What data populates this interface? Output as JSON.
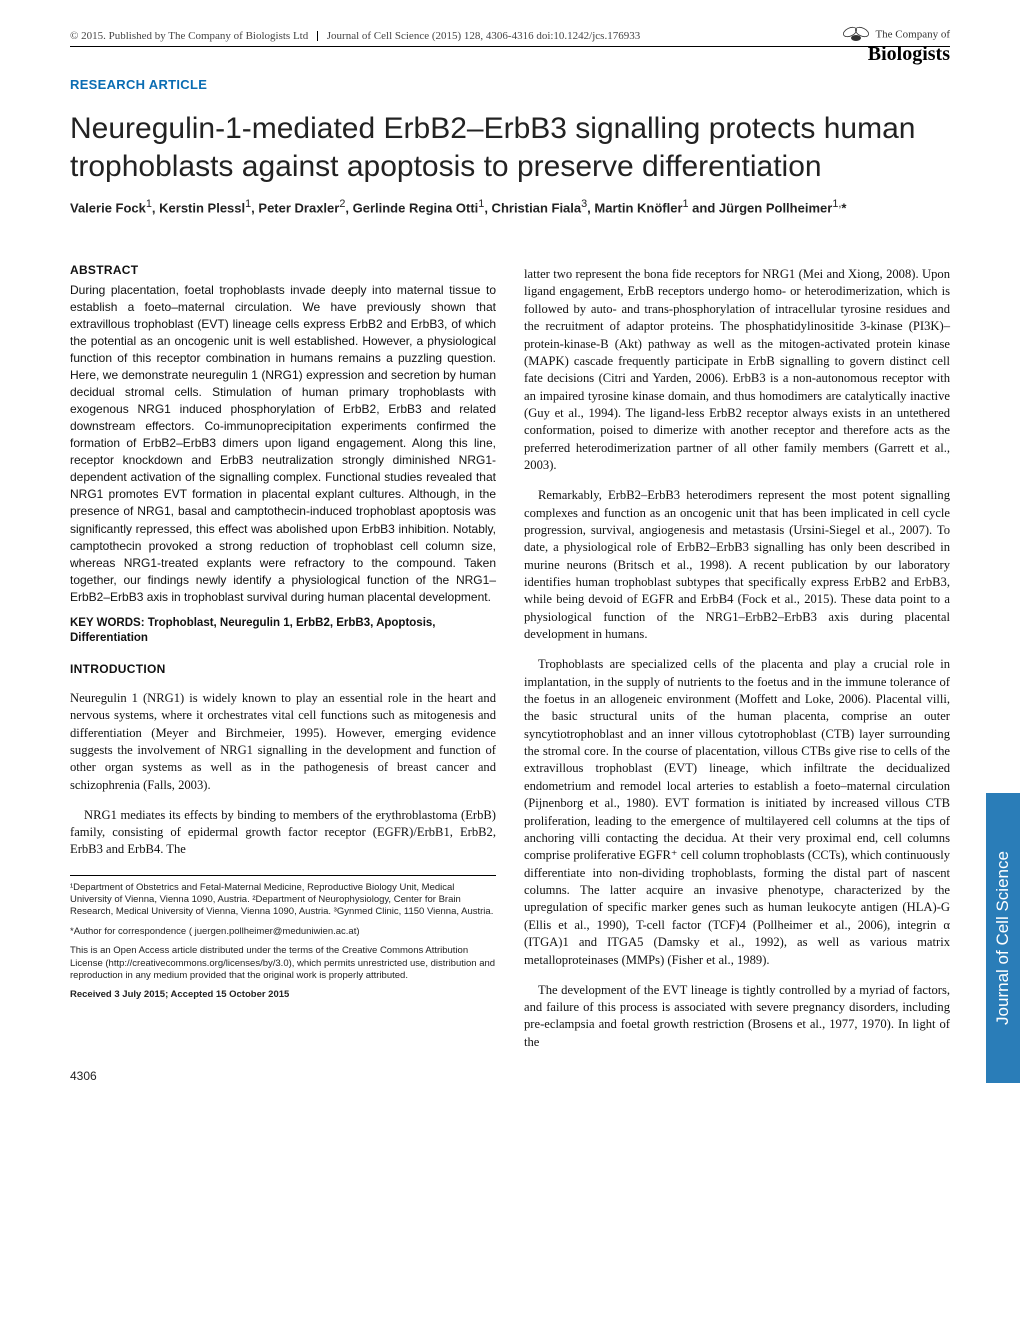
{
  "header": {
    "copyright": "© 2015. Published by The Company of Biologists Ltd",
    "citation": "Journal of Cell Science (2015) 128, 4306-4316 doi:10.1242/jcs.176933"
  },
  "logo": {
    "small": "The Company of",
    "main": "Biologists",
    "accent_color": "#2a7db8"
  },
  "article_type": "RESEARCH ARTICLE",
  "title": "Neuregulin-1-mediated ErbB2–ErbB3 signalling protects human trophoblasts against apoptosis to preserve differentiation",
  "authors_html": "Valerie Fock<sup>1</sup>, Kerstin Plessl<sup>1</sup>, Peter Draxler<sup>2</sup>, Gerlinde Regina Otti<sup>1</sup>, Christian Fiala<sup>3</sup>, Martin Knöfler<sup>1</sup> and Jürgen Pollheimer<sup>1,</sup>*",
  "abstract_head": "ABSTRACT",
  "abstract": "During placentation, foetal trophoblasts invade deeply into maternal tissue to establish a foeto–maternal circulation. We have previously shown that extravillous trophoblast (EVT) lineage cells express ErbB2 and ErbB3, of which the potential as an oncogenic unit is well established. However, a physiological function of this receptor combination in humans remains a puzzling question. Here, we demonstrate neuregulin 1 (NRG1) expression and secretion by human decidual stromal cells. Stimulation of human primary trophoblasts with exogenous NRG1 induced phosphorylation of ErbB2, ErbB3 and related downstream effectors. Co-immunoprecipitation experiments confirmed the formation of ErbB2–ErbB3 dimers upon ligand engagement. Along this line, receptor knockdown and ErbB3 neutralization strongly diminished NRG1-dependent activation of the signalling complex. Functional studies revealed that NRG1 promotes EVT formation in placental explant cultures. Although, in the presence of NRG1, basal and camptothecin-induced trophoblast apoptosis was significantly repressed, this effect was abolished upon ErbB3 inhibition. Notably, camptothecin provoked a strong reduction of trophoblast cell column size, whereas NRG1-treated explants were refractory to the compound. Taken together, our findings newly identify a physiological function of the NRG1–ErbB2–ErbB3 axis in trophoblast survival during human placental development.",
  "keywords": "KEY WORDS: Trophoblast, Neuregulin 1, ErbB2, ErbB3, Apoptosis, Differentiation",
  "intro_head": "INTRODUCTION",
  "intro_p1": "Neuregulin 1 (NRG1) is widely known to play an essential role in the heart and nervous systems, where it orchestrates vital cell functions such as mitogenesis and differentiation (Meyer and Birchmeier, 1995). However, emerging evidence suggests the involvement of NRG1 signalling in the development and function of other organ systems as well as in the pathogenesis of breast cancer and schizophrenia (Falls, 2003).",
  "intro_p2": "NRG1 mediates its effects by binding to members of the erythroblastoma (ErbB) family, consisting of epidermal growth factor receptor (EGFR)/ErbB1, ErbB2, ErbB3 and ErbB4. The",
  "right_p1": "latter two represent the bona fide receptors for NRG1 (Mei and Xiong, 2008). Upon ligand engagement, ErbB receptors undergo homo- or heterodimerization, which is followed by auto- and trans-phosphorylation of intracellular tyrosine residues and the recruitment of adaptor proteins. The phosphatidylinositide 3-kinase (PI3K)–protein-kinase-B (Akt) pathway as well as the mitogen-activated protein kinase (MAPK) cascade frequently participate in ErbB signalling to govern distinct cell fate decisions (Citri and Yarden, 2006). ErbB3 is a non-autonomous receptor with an impaired tyrosine kinase domain, and thus homodimers are catalytically inactive (Guy et al., 1994). The ligand-less ErbB2 receptor always exists in an untethered conformation, poised to dimerize with another receptor and therefore acts as the preferred heterodimerization partner of all other family members (Garrett et al., 2003).",
  "right_p2": "Remarkably, ErbB2–ErbB3 heterodimers represent the most potent signalling complexes and function as an oncogenic unit that has been implicated in cell cycle progression, survival, angiogenesis and metastasis (Ursini-Siegel et al., 2007). To date, a physiological role of ErbB2–ErbB3 signalling has only been described in murine neurons (Britsch et al., 1998). A recent publication by our laboratory identifies human trophoblast subtypes that specifically express ErbB2 and ErbB3, while being devoid of EGFR and ErbB4 (Fock et al., 2015). These data point to a physiological function of the NRG1–ErbB2–ErbB3 axis during placental development in humans.",
  "right_p3": "Trophoblasts are specialized cells of the placenta and play a crucial role in implantation, in the supply of nutrients to the foetus and in the immune tolerance of the foetus in an allogeneic environment (Moffett and Loke, 2006). Placental villi, the basic structural units of the human placenta, comprise an outer syncytiotrophoblast and an inner villous cytotrophoblast (CTB) layer surrounding the stromal core. In the course of placentation, villous CTBs give rise to cells of the extravillous trophoblast (EVT) lineage, which infiltrate the decidualized endometrium and remodel local arteries to establish a foeto–maternal circulation (Pijnenborg et al., 1980). EVT formation is initiated by increased villous CTB proliferation, leading to the emergence of multilayered cell columns at the tips of anchoring villi contacting the decidua. At their very proximal end, cell columns comprise proliferative EGFR⁺ cell column trophoblasts (CCTs), which continuously differentiate into non-dividing trophoblasts, forming the distal part of nascent columns. The latter acquire an invasive phenotype, characterized by the upregulation of specific marker genes such as human leukocyte antigen (HLA)-G (Ellis et al., 1990), T-cell factor (TCF)4 (Pollheimer et al., 2006), integrin α (ITGA)1 and ITGA5 (Damsky et al., 1992), as well as various matrix metalloproteinases (MMPs) (Fisher et al., 1989).",
  "right_p4": "The development of the EVT lineage is tightly controlled by a myriad of factors, and failure of this process is associated with severe pregnancy disorders, including pre-eclampsia and foetal growth restriction (Brosens et al., 1977, 1970). In light of the",
  "affiliations": "¹Department of Obstetrics and Fetal-Maternal Medicine, Reproductive Biology Unit, Medical University of Vienna, Vienna 1090, Austria. ²Department of Neurophysiology, Center for Brain Research, Medical University of Vienna, Vienna 1090, Austria. ³Gynmed Clinic, 1150 Vienna, Austria.",
  "correspondence": "*Author for correspondence ( juergen.pollheimer@meduniwien.ac.at)",
  "license": "This is an Open Access article distributed under the terms of the Creative Commons Attribution License (http://creativecommons.org/licenses/by/3.0), which permits unrestricted use, distribution and reproduction in any medium provided that the original work is properly attributed.",
  "received": "Received 3 July 2015; Accepted 15 October 2015",
  "page_number": "4306",
  "side_tab": "Journal of Cell Science",
  "colors": {
    "link_blue": "#0a6db3",
    "tab_blue": "#2a7db8",
    "text": "#111111",
    "rule": "#000000"
  }
}
